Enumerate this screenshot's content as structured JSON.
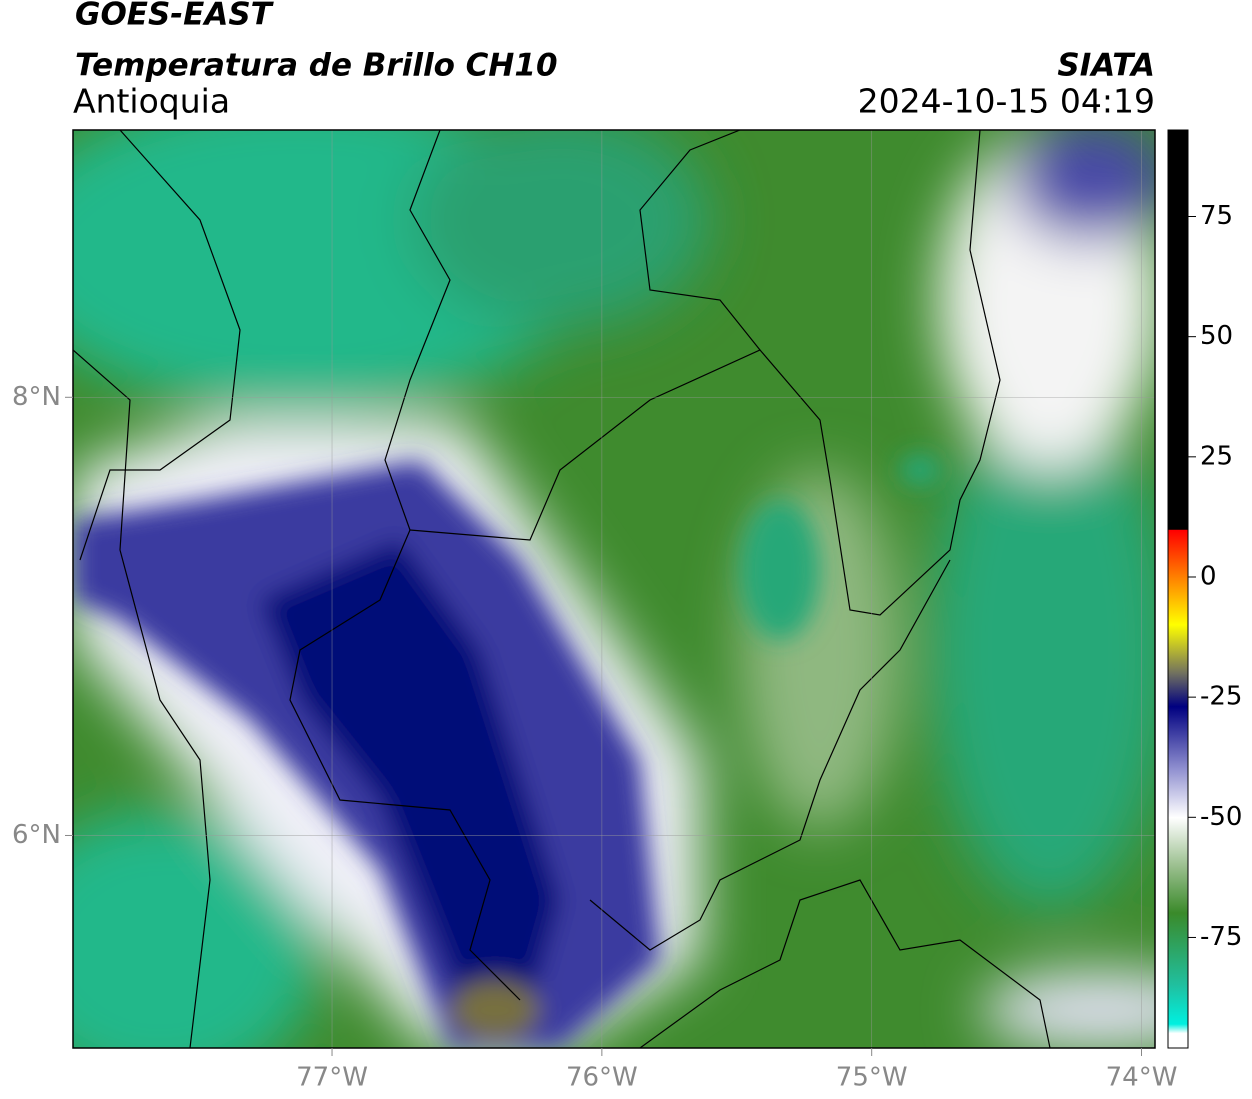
{
  "header": {
    "title": "GOES-EAST",
    "subtitle": "Temperatura de Brillo CH10",
    "region": "Antioquia",
    "source": "SIATA",
    "datetime": "2024-10-15 04:19"
  },
  "map": {
    "lon_range": [
      -77.96,
      -73.95
    ],
    "lat_range": [
      5.03,
      9.22
    ],
    "lon_ticks": [
      {
        "value": -77,
        "label": "77°W"
      },
      {
        "value": -76,
        "label": "76°W"
      },
      {
        "value": -75,
        "label": "75°W"
      },
      {
        "value": -74,
        "label": "74°W"
      }
    ],
    "lat_ticks": [
      {
        "value": 8,
        "label": "8°N"
      },
      {
        "value": 6,
        "label": "6°N"
      }
    ]
  },
  "colorbar": {
    "range": [
      -98,
      93
    ],
    "ticks": [
      75,
      50,
      25,
      0,
      -25,
      -50,
      -75
    ]
  }
}
